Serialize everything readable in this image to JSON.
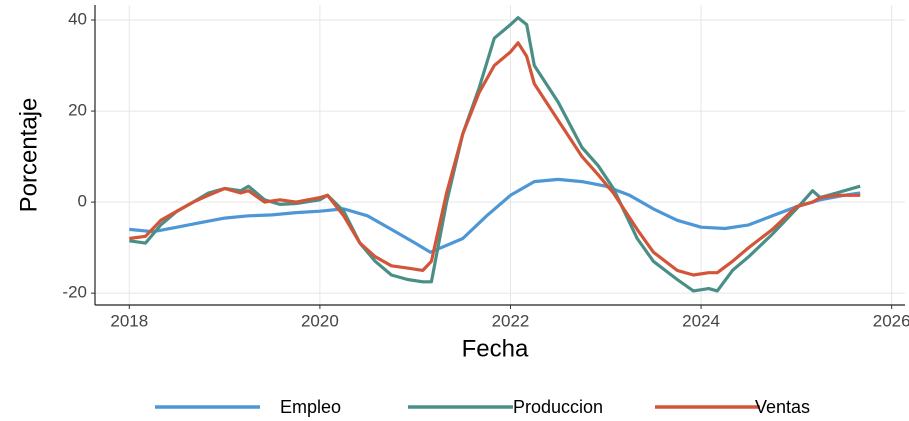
{
  "chart_data": {
    "type": "line",
    "x_label": "Fecha",
    "y_label": "Porcentaje",
    "xlim": [
      2017.64,
      2026.14
    ],
    "xticks": [
      2018,
      2020,
      2022,
      2024,
      2026
    ],
    "ylim": [
      -22.6,
      43.3
    ],
    "yticks": [
      -20,
      0,
      20,
      40
    ],
    "grid": true,
    "legend": "bottom",
    "series": [
      {
        "name": "Empleo",
        "color": "#4e97d6",
        "x": [
          2018,
          2018.25,
          2018.5,
          2018.75,
          2019,
          2019.25,
          2019.5,
          2019.75,
          2020,
          2020.25,
          2020.5,
          2020.75,
          2021,
          2021.16,
          2021.5,
          2021.75,
          2022,
          2022.25,
          2022.5,
          2022.75,
          2023,
          2023.25,
          2023.5,
          2023.75,
          2024,
          2024.25,
          2024.5,
          2024.75,
          2025,
          2025.25,
          2025.5,
          2025.67
        ],
        "values": [
          -6,
          -6.5,
          -5.5,
          -4.5,
          -3.5,
          -3,
          -2.8,
          -2.3,
          -2,
          -1.5,
          -3,
          -6,
          -9,
          -11,
          -8,
          -3,
          1.5,
          4.5,
          5,
          4.5,
          3.5,
          1.5,
          -1.5,
          -4,
          -5.5,
          -5.8,
          -5,
          -3,
          -1,
          0.5,
          1.5,
          2
        ]
      },
      {
        "name": "Produccion",
        "color": "#4a8f86",
        "x": [
          2018,
          2018.17,
          2018.33,
          2018.5,
          2018.67,
          2018.83,
          2019,
          2019.17,
          2019.25,
          2019.42,
          2019.58,
          2019.75,
          2020,
          2020.08,
          2020.25,
          2020.42,
          2020.58,
          2020.75,
          2020.92,
          2021.08,
          2021.17,
          2021.33,
          2021.5,
          2021.67,
          2021.83,
          2022,
          2022.08,
          2022.17,
          2022.25,
          2022.5,
          2022.75,
          2022.92,
          2023.08,
          2023.33,
          2023.5,
          2023.75,
          2023.92,
          2024.08,
          2024.17,
          2024.33,
          2024.5,
          2024.75,
          2025,
          2025.17,
          2025.25,
          2025.42,
          2025.67
        ],
        "values": [
          -8.5,
          -9,
          -5,
          -2,
          0,
          2,
          3,
          2.5,
          3.5,
          0.5,
          -0.5,
          -0.3,
          0.5,
          1.5,
          -2,
          -9,
          -13,
          -16,
          -17,
          -17.5,
          -17.5,
          0,
          15,
          25,
          36,
          39,
          40.5,
          39,
          30,
          22,
          12,
          8,
          3,
          -8,
          -13,
          -17,
          -19.5,
          -19,
          -19.5,
          -15,
          -12,
          -7,
          -1.5,
          2.5,
          1,
          2,
          3.5
        ]
      },
      {
        "name": "Ventas",
        "color": "#d2553a",
        "x": [
          2018,
          2018.17,
          2018.33,
          2018.5,
          2018.67,
          2018.83,
          2019,
          2019.17,
          2019.25,
          2019.42,
          2019.58,
          2019.75,
          2020,
          2020.08,
          2020.25,
          2020.42,
          2020.58,
          2020.75,
          2020.92,
          2021.08,
          2021.17,
          2021.33,
          2021.5,
          2021.67,
          2021.83,
          2022,
          2022.08,
          2022.17,
          2022.25,
          2022.5,
          2022.75,
          2022.92,
          2023.08,
          2023.33,
          2023.5,
          2023.75,
          2023.92,
          2024.08,
          2024.17,
          2024.33,
          2024.5,
          2024.75,
          2025,
          2025.17,
          2025.25,
          2025.42,
          2025.67
        ],
        "values": [
          -8,
          -7.5,
          -4,
          -2,
          0,
          1.5,
          3,
          2,
          2.5,
          0,
          0.5,
          0,
          1,
          1.5,
          -3,
          -9,
          -12,
          -14,
          -14.5,
          -15,
          -13,
          2,
          15,
          24,
          30,
          33,
          35,
          32,
          26,
          18,
          10,
          6,
          2,
          -6,
          -11,
          -15,
          -16,
          -15.5,
          -15.5,
          -13,
          -10,
          -6,
          -1,
          0,
          1,
          1.5,
          1.5
        ]
      }
    ]
  }
}
